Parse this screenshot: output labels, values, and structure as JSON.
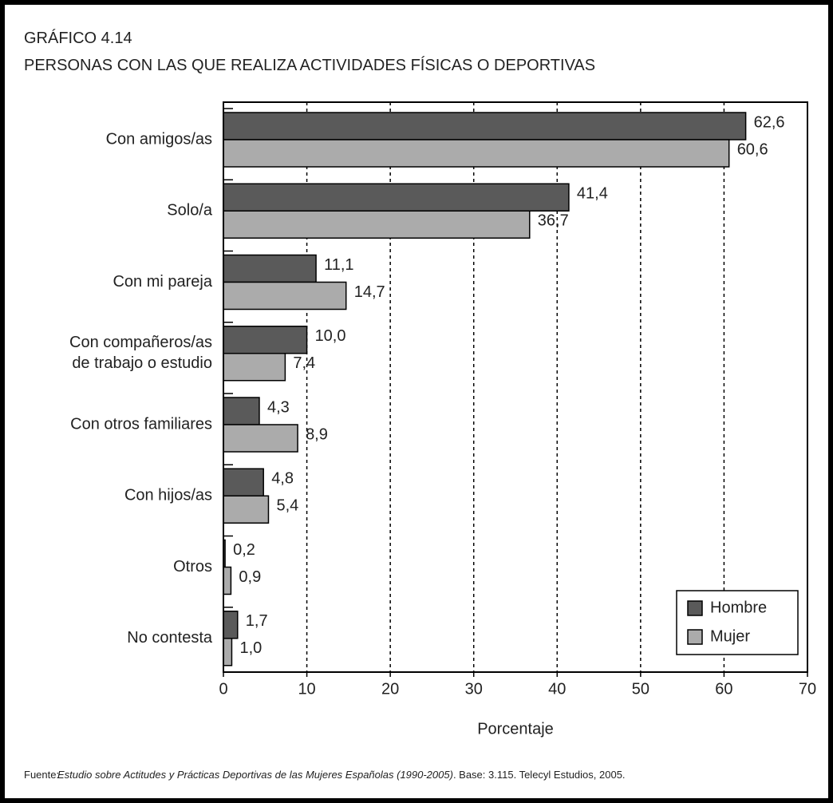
{
  "chart_data": {
    "type": "bar",
    "orientation": "horizontal",
    "title": "GRÁFICO 4.14",
    "subtitle": "PERSONAS CON LAS QUE REALIZA ACTIVIDADES FÍSICAS O DEPORTIVAS",
    "categories": [
      "Con amigos/as",
      "Solo/a",
      "Con mi pareja",
      "Con compañeros/as\nde trabajo o estudio",
      "Con otros familiares",
      "Con hijos/as",
      "Otros",
      "No contesta"
    ],
    "series": [
      {
        "name": "Hombre",
        "color": "#5a5a5a",
        "values": [
          62.6,
          41.4,
          11.1,
          10.0,
          4.3,
          4.8,
          0.2,
          1.7
        ],
        "value_labels": [
          "62,6",
          "41,4",
          "11,1",
          "10,0",
          "4,3",
          "4,8",
          "0,2",
          "1,7"
        ]
      },
      {
        "name": "Mujer",
        "color": "#ababab",
        "values": [
          60.6,
          36.7,
          14.7,
          7.4,
          8.9,
          5.4,
          0.9,
          1.0
        ],
        "value_labels": [
          "60,6",
          "36,7",
          "14,7",
          "7,4",
          "8,9",
          "5,4",
          "0,9",
          "1,0"
        ]
      }
    ],
    "xlabel": "Porcentaje",
    "xlim": [
      0,
      70
    ],
    "xticks": [
      0,
      10,
      20,
      30,
      40,
      50,
      60,
      70
    ],
    "grid": true,
    "legend": "lower right",
    "source": {
      "label": "Fuente:",
      "title": "Estudio sobre Actitudes y Prácticas Deportivas de las Mujeres Españolas (1990-2005)",
      "rest": ". Base: 3.115. Telecyl Estudios, 2005."
    }
  }
}
